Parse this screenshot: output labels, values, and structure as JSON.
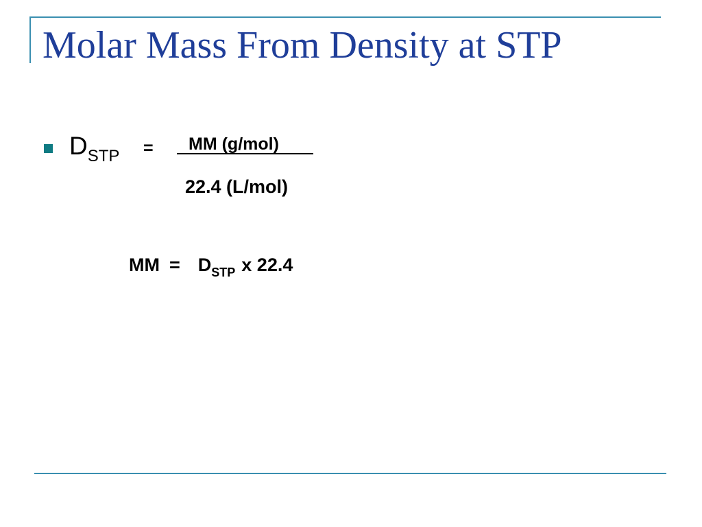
{
  "slide": {
    "title": "Molar Mass From Density at STP",
    "colors": {
      "title": "#1f3e99",
      "rule": "#3a8fb0",
      "bullet": "#0f7b83",
      "text": "#000000"
    },
    "formula1": {
      "symbol": "D",
      "subscript": "STP",
      "equals": "=",
      "numerator": "MM (g/mol)",
      "denominator": "22.4 (L/mol)"
    },
    "formula2": {
      "lhs": "MM",
      "equals": "=",
      "symbol": "D",
      "subscript": "STP",
      "rhs": "x 22.4"
    }
  }
}
